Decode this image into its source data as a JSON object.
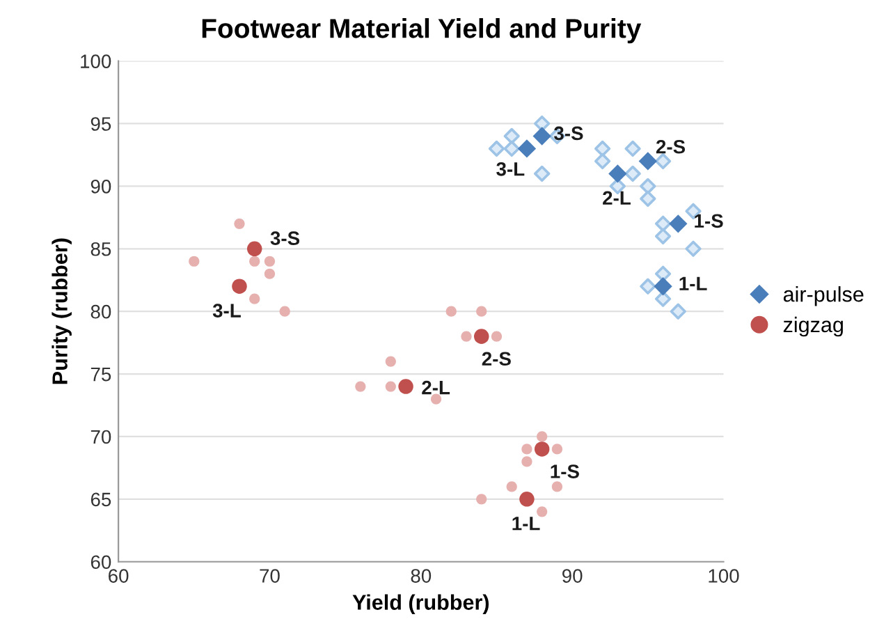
{
  "chart_data": {
    "type": "scatter",
    "title": "Footwear Material Yield and Purity",
    "xlabel": "Yield (rubber)",
    "ylabel": "Purity (rubber)",
    "xlim": [
      60,
      100
    ],
    "xticks": [
      60,
      70,
      80,
      90,
      100
    ],
    "ylim": [
      60,
      100
    ],
    "yticks": [
      60,
      65,
      70,
      75,
      80,
      85,
      90,
      95,
      100
    ],
    "grid": "y",
    "legend": "right",
    "series": [
      {
        "color": "#9dc3e6",
        "marker": "diamond",
        "x": [
          88,
          86,
          89,
          85,
          86,
          88,
          92,
          94,
          92,
          96,
          94,
          95,
          93,
          95,
          98,
          96,
          96,
          98,
          96,
          95,
          96,
          97
        ],
        "values": [
          95,
          94,
          94,
          93,
          93,
          91,
          93,
          93,
          92,
          92,
          91,
          90,
          90,
          89,
          88,
          87,
          86,
          85,
          83,
          82,
          81,
          80
        ]
      },
      {
        "color": "#e6b0ae",
        "marker": "circle",
        "x": [
          68,
          65,
          69,
          70,
          70,
          69,
          71,
          82,
          84,
          83,
          85,
          78,
          76,
          78,
          81,
          88,
          87,
          89,
          87,
          86,
          89,
          84,
          88
        ],
        "values": [
          87,
          84,
          84,
          84,
          83,
          81,
          80,
          80,
          80,
          78,
          78,
          76,
          74,
          74,
          73,
          70,
          69,
          69,
          68,
          66,
          66,
          65,
          64
        ]
      },
      {
        "name": "air-pulse",
        "color": "#4a7ebb",
        "marker": "diamond",
        "x": [
          88,
          87,
          95,
          93,
          97,
          96
        ],
        "values": [
          94,
          93,
          92,
          91,
          87,
          82
        ]
      },
      {
        "name": "zigzag",
        "color": "#c0504d",
        "marker": "circle",
        "x": [
          69,
          68,
          84,
          79,
          88,
          87
        ],
        "values": [
          85,
          82,
          78,
          74,
          69,
          65
        ]
      }
    ],
    "annotations": [
      {
        "text": "3-S",
        "x": 88,
        "y": 94
      },
      {
        "text": "3-L",
        "x": 87,
        "y": 93
      },
      {
        "text": "2-S",
        "x": 95,
        "y": 92
      },
      {
        "text": "2-L",
        "x": 93,
        "y": 91
      },
      {
        "text": "1-S",
        "x": 97,
        "y": 87
      },
      {
        "text": "1-L",
        "x": 96,
        "y": 82
      },
      {
        "text": "3-S",
        "x": 69,
        "y": 85
      },
      {
        "text": "3-L",
        "x": 68,
        "y": 82
      },
      {
        "text": "2-S",
        "x": 84,
        "y": 78
      },
      {
        "text": "2-L",
        "x": 79,
        "y": 74
      },
      {
        "text": "1-S",
        "x": 88,
        "y": 69
      },
      {
        "text": "1-L",
        "x": 87,
        "y": 65
      }
    ]
  }
}
